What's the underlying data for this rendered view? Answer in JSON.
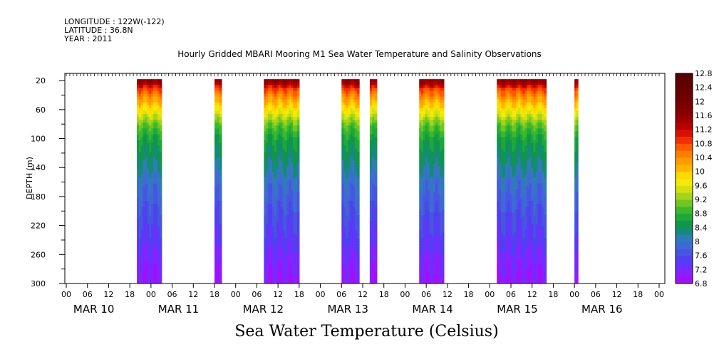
{
  "header": {
    "longitude": "LONGITUDE : 122W(-122)",
    "latitude": "LATITUDE : 36.8N",
    "year": "YEAR : 2011"
  },
  "chart_data": {
    "type": "heatmap",
    "title": "Hourly Gridded MBARI Mooring M1 Sea Water Temperature and Salinity Observations",
    "xlabel": "Sea Water Temperature (Celsius)",
    "ylabel": "DEPTH (m)",
    "ylim": [
      300,
      10
    ],
    "y_ticks": [
      20,
      60,
      100,
      140,
      180,
      220,
      260,
      300
    ],
    "x_hour_ticks": [
      "00",
      "06",
      "12",
      "18",
      "00",
      "06",
      "12",
      "18",
      "00",
      "06",
      "12",
      "18",
      "00",
      "06",
      "12",
      "18",
      "00",
      "06",
      "12",
      "18",
      "00",
      "06",
      "12",
      "18",
      "00",
      "06",
      "12",
      "18",
      "00"
    ],
    "x_day_labels": [
      "MAR 10",
      "MAR 11",
      "MAR 12",
      "MAR 13",
      "MAR 14",
      "MAR 15",
      "MAR 16"
    ],
    "colorbar": {
      "min": 6.8,
      "max": 12.8,
      "step": 0.2,
      "labels": [
        "12.8",
        "12.4",
        "12",
        "11.6",
        "11.2",
        "10.8",
        "10.4",
        "10",
        "9.6",
        "9.2",
        "8.8",
        "8.4",
        "8",
        "7.6",
        "7.2",
        "6.8"
      ]
    },
    "data_segments_hours": [
      {
        "start": 20,
        "end": 27
      },
      {
        "start": 42,
        "end": 44
      },
      {
        "start": 56,
        "end": 66
      },
      {
        "start": 78,
        "end": 83
      },
      {
        "start": 86,
        "end": 88
      },
      {
        "start": 100,
        "end": 107
      },
      {
        "start": 122,
        "end": 136
      },
      {
        "start": 144,
        "end": 145
      }
    ],
    "depth_profile": [
      {
        "depth": 20,
        "temp": 11.6
      },
      {
        "depth": 30,
        "temp": 10.8
      },
      {
        "depth": 45,
        "temp": 10.2
      },
      {
        "depth": 60,
        "temp": 9.7
      },
      {
        "depth": 80,
        "temp": 9.0
      },
      {
        "depth": 100,
        "temp": 8.6
      },
      {
        "depth": 130,
        "temp": 8.3
      },
      {
        "depth": 160,
        "temp": 7.95
      },
      {
        "depth": 200,
        "temp": 7.65
      },
      {
        "depth": 240,
        "temp": 7.4
      },
      {
        "depth": 270,
        "temp": 7.15
      },
      {
        "depth": 300,
        "temp": 7.0
      }
    ]
  }
}
